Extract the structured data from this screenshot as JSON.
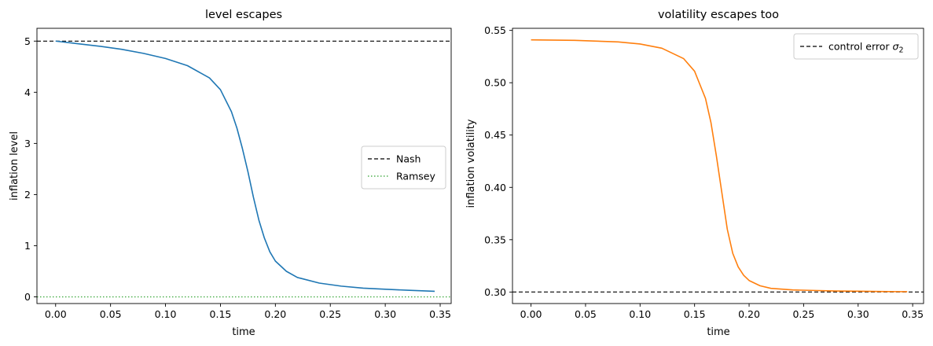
{
  "chart_data": [
    {
      "type": "line",
      "title": "level escapes",
      "xlabel": "time",
      "ylabel": "inflation level",
      "xlim": [
        -0.017,
        0.36
      ],
      "ylim": [
        -0.13,
        5.25
      ],
      "xticks": [
        0.0,
        0.05,
        0.1,
        0.15,
        0.2,
        0.25,
        0.3,
        0.35
      ],
      "xtick_labels": [
        "0.00",
        "0.05",
        "0.10",
        "0.15",
        "0.20",
        "0.25",
        "0.30",
        "0.35"
      ],
      "yticks": [
        0,
        1,
        2,
        3,
        4,
        5
      ],
      "ytick_labels": [
        "0",
        "1",
        "2",
        "3",
        "4",
        "5"
      ],
      "grid": false,
      "legend_position": "center-right",
      "legend": [
        {
          "label": "Nash",
          "color": "#000000",
          "style": "dashed"
        },
        {
          "label": "Ramsey",
          "color": "#2ca02c",
          "style": "dotted"
        }
      ],
      "hlines": [
        {
          "name": "Nash",
          "y": 5.0,
          "color": "#000000",
          "style": "dashed"
        },
        {
          "name": "Ramsey",
          "y": 0.0,
          "color": "#2ca02c",
          "style": "dotted"
        }
      ],
      "series": [
        {
          "color": "#1f77b4",
          "x": [
            0.0,
            0.02,
            0.04,
            0.06,
            0.08,
            0.1,
            0.12,
            0.14,
            0.15,
            0.16,
            0.165,
            0.17,
            0.175,
            0.18,
            0.185,
            0.19,
            0.195,
            0.2,
            0.21,
            0.22,
            0.24,
            0.26,
            0.28,
            0.3,
            0.32,
            0.345
          ],
          "y": [
            5.0,
            4.95,
            4.9,
            4.84,
            4.76,
            4.66,
            4.52,
            4.28,
            4.05,
            3.62,
            3.3,
            2.9,
            2.45,
            1.95,
            1.5,
            1.15,
            0.88,
            0.7,
            0.5,
            0.38,
            0.27,
            0.21,
            0.17,
            0.15,
            0.13,
            0.11
          ]
        }
      ]
    },
    {
      "type": "line",
      "title": "volatility escapes too",
      "xlabel": "time",
      "ylabel": "inflation volatility",
      "xlim": [
        -0.017,
        0.36
      ],
      "ylim": [
        0.289,
        0.552
      ],
      "xticks": [
        0.0,
        0.05,
        0.1,
        0.15,
        0.2,
        0.25,
        0.3,
        0.35
      ],
      "xtick_labels": [
        "0.00",
        "0.05",
        "0.10",
        "0.15",
        "0.20",
        "0.25",
        "0.30",
        "0.35"
      ],
      "yticks": [
        0.3,
        0.35,
        0.4,
        0.45,
        0.5,
        0.55
      ],
      "ytick_labels": [
        "0.30",
        "0.35",
        "0.40",
        "0.45",
        "0.50",
        "0.55"
      ],
      "grid": false,
      "legend_position": "top-right",
      "legend": [
        {
          "label": "control error",
          "symbol": "σ",
          "subscript": "2",
          "color": "#000000",
          "style": "dashed"
        }
      ],
      "hlines": [
        {
          "name": "control error σ2",
          "y": 0.3,
          "color": "#000000",
          "style": "dashed"
        }
      ],
      "series": [
        {
          "color": "#ff7f0e",
          "x": [
            0.0,
            0.04,
            0.08,
            0.1,
            0.12,
            0.14,
            0.15,
            0.16,
            0.165,
            0.17,
            0.175,
            0.18,
            0.185,
            0.19,
            0.195,
            0.2,
            0.21,
            0.22,
            0.24,
            0.26,
            0.28,
            0.3,
            0.32,
            0.345
          ],
          "y": [
            0.541,
            0.5405,
            0.539,
            0.537,
            0.533,
            0.523,
            0.511,
            0.485,
            0.462,
            0.43,
            0.395,
            0.36,
            0.337,
            0.324,
            0.316,
            0.311,
            0.306,
            0.3035,
            0.302,
            0.3015,
            0.301,
            0.3008,
            0.3005,
            0.3003
          ]
        }
      ]
    }
  ]
}
